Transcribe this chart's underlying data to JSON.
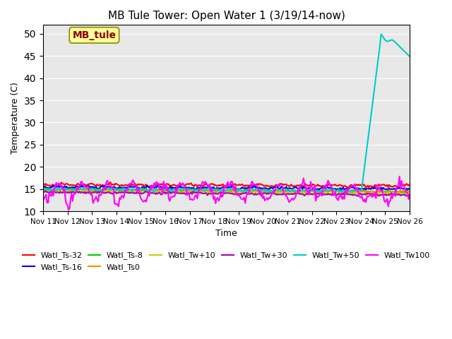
{
  "title": "MB Tule Tower: Open Water 1 (3/19/14-now)",
  "xlabel": "Time",
  "ylabel": "Temperature (C)",
  "ylim": [
    10,
    52
  ],
  "yticks": [
    10,
    15,
    20,
    25,
    30,
    35,
    40,
    45,
    50
  ],
  "xtick_labels": [
    "Nov 11",
    "Nov 12",
    "Nov 13",
    "Nov 14",
    "Nov 15",
    "Nov 16",
    "Nov 17",
    "Nov 18",
    "Nov 19",
    "Nov 20",
    "Nov 21",
    "Nov 22",
    "Nov 23",
    "Nov 24",
    "Nov 25",
    "Nov 26"
  ],
  "annotation_text": "MB_tule",
  "annotation_color": "#8B0000",
  "annotation_bg": "#FFFF99",
  "bg_color": "#E8E8E8",
  "series_names": [
    "Watl_Ts-32",
    "Watl_Ts-16",
    "Watl_Ts-8",
    "Watl_Ts0",
    "Watl_Tw+10",
    "Watl_Tw+30",
    "Watl_Tw+50",
    "Watl_Tw100"
  ],
  "series_colors": [
    "#FF0000",
    "#0000FF",
    "#00CC00",
    "#FF8800",
    "#CCCC00",
    "#AA00AA",
    "#00CCCC",
    "#FF00FF"
  ],
  "linewidth": 1.5
}
